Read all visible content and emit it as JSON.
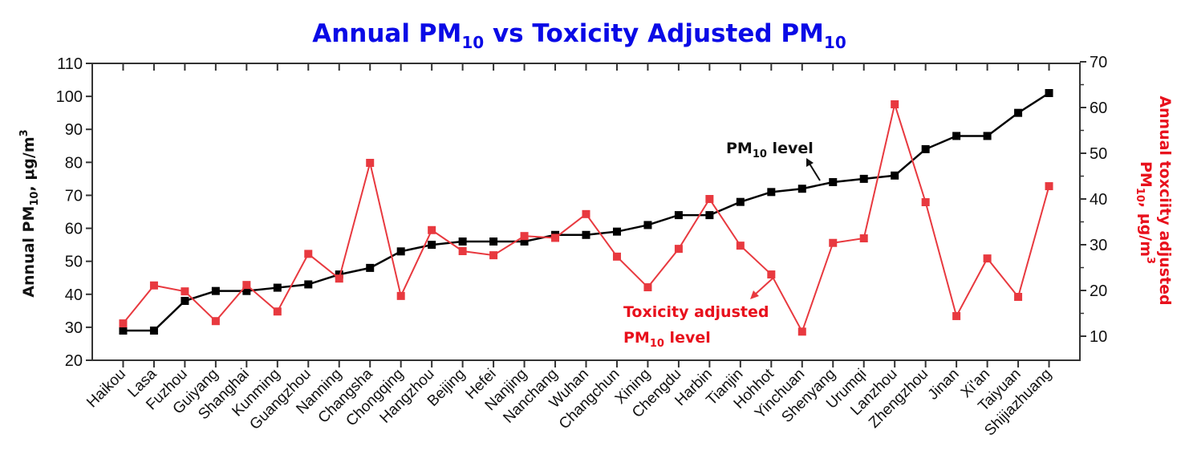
{
  "chart_data": {
    "type": "line",
    "title": {
      "main_a": "Annual PM",
      "sub_a": "10",
      "main_b": " vs Toxicity Adjusted PM",
      "sub_b": "10"
    },
    "categories": [
      "Haikou",
      "Lasa",
      "Fuzhou",
      "Guiyang",
      "Shanghai",
      "Kunming",
      "Guangzhou",
      "Nanning",
      "Changsha",
      "Chongqing",
      "Hangzhou",
      "Beijing",
      "Hefei",
      "Nanjing",
      "Nanchang",
      "Wuhan",
      "Changchun",
      "Xining",
      "Chengdu",
      "Harbin",
      "Tianjin",
      "Hohhot",
      "Yinchuan",
      "Shenyang",
      "Urumqi",
      "Lanzhou",
      "Zhengzhou",
      "Jinan",
      "Xi'an",
      "Taiyuan",
      "Shijiazhuang"
    ],
    "series": [
      {
        "name": "PM10 level",
        "axis": "left",
        "color": "#000000",
        "values": [
          29,
          29,
          38,
          41,
          41,
          42,
          43,
          46,
          48,
          53,
          55,
          56,
          56,
          56,
          58,
          58,
          59,
          61,
          64,
          64,
          68,
          71,
          72,
          74,
          75,
          76,
          84,
          88,
          88,
          95,
          101
        ]
      },
      {
        "name": "Toxicity adjusted PM10 level",
        "axis": "right",
        "color": "#e8393f",
        "values": [
          12.8,
          21.1,
          19.8,
          13.3,
          21.2,
          15.4,
          28.0,
          22.6,
          47.9,
          18.8,
          33.2,
          28.6,
          27.7,
          31.9,
          31.5,
          36.7,
          27.4,
          20.7,
          29.1,
          40.0,
          29.8,
          23.5,
          11.0,
          30.4,
          31.4,
          60.7,
          39.3,
          14.4,
          27.0,
          18.6,
          42.8
        ]
      }
    ],
    "left_axis": {
      "ylim": [
        20,
        110
      ],
      "ticks": [
        "20",
        "30",
        "40",
        "50",
        "60",
        "70",
        "80",
        "90",
        "100",
        "110"
      ],
      "label": {
        "main_a": "Annual PM",
        "sub": "10",
        "main_b": ", μg/m",
        "sup": "3"
      }
    },
    "right_axis": {
      "ylim": [
        4.74,
        69.65
      ],
      "ticks": [
        "10",
        "20",
        "30",
        "40",
        "50",
        "60",
        "70"
      ],
      "label_line1": "Annual toxciity adjusted",
      "label_line2": {
        "main_a": "PM",
        "sub": "10",
        "main_b": ", μg/m",
        "sup": "3"
      },
      "color": "#e8101c"
    },
    "annotations": {
      "black": {
        "main": "PM",
        "sub": "10",
        "rest": " level",
        "color": "#111111"
      },
      "red_line1": "Toxicity adjusted",
      "red_line2": {
        "main": "PM",
        "sub": "10",
        "rest": " level"
      },
      "red_color": "#e8101c"
    },
    "grid": false,
    "legend": "none"
  }
}
